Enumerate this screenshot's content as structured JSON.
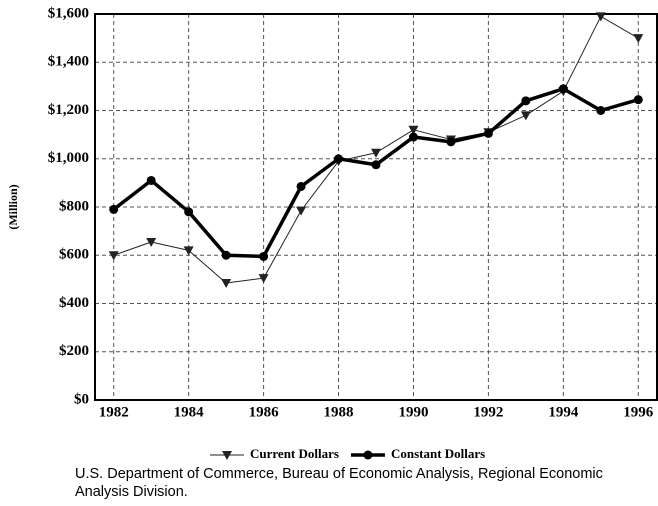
{
  "chart_data": {
    "type": "line",
    "ylabel": "(Million)",
    "x": [
      1982,
      1983,
      1984,
      1985,
      1986,
      1987,
      1988,
      1989,
      1990,
      1991,
      1992,
      1993,
      1994,
      1995,
      1996
    ],
    "series": [
      {
        "name": "Current Dollars",
        "color": "#222222",
        "marker": "triangle-down",
        "width": 1,
        "values": [
          600,
          655,
          620,
          485,
          505,
          785,
          990,
          1025,
          1120,
          1080,
          1110,
          1180,
          1280,
          1590,
          1500
        ]
      },
      {
        "name": "Constant Dollars",
        "color": "#000000",
        "marker": "circle",
        "width": 3.5,
        "values": [
          790,
          910,
          780,
          600,
          595,
          885,
          1000,
          975,
          1090,
          1070,
          1105,
          1240,
          1290,
          1200,
          1245
        ]
      }
    ],
    "xlim": [
      1981.5,
      1996.5
    ],
    "xticks": [
      1982,
      1984,
      1986,
      1988,
      1990,
      1992,
      1994,
      1996
    ],
    "ylim": [
      0,
      1600
    ],
    "yticks": [
      {
        "value": 0,
        "label": "$0"
      },
      {
        "value": 200,
        "label": "$200"
      },
      {
        "value": 400,
        "label": "$400"
      },
      {
        "value": 600,
        "label": "$600"
      },
      {
        "value": 800,
        "label": "$800"
      },
      {
        "value": 1000,
        "label": "$1,000"
      },
      {
        "value": 1200,
        "label": "$1,200"
      },
      {
        "value": 1400,
        "label": "$1,400"
      },
      {
        "value": 1600,
        "label": "$1,600"
      }
    ],
    "grid": true,
    "legend": "bottom"
  },
  "source": "U.S. Department of Commerce, Bureau of Economic Analysis, Regional Economic Analysis Division."
}
